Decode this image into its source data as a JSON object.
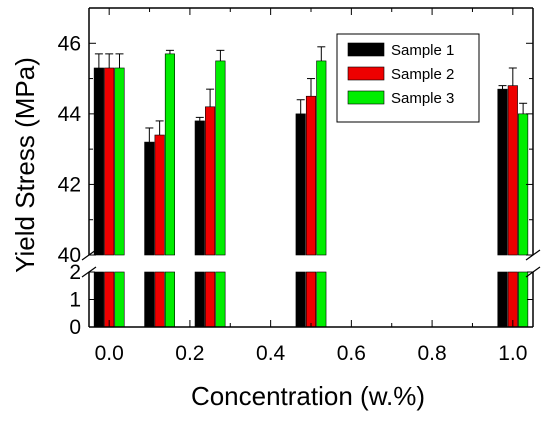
{
  "chart_data": {
    "type": "bar",
    "xlabel": "Concentration (w.%)",
    "ylabel": "Yield Stress (MPa)",
    "x_ticks": [
      "0.0",
      "0.2",
      "0.4",
      "0.6",
      "0.8",
      "1.0"
    ],
    "x_tick_values": [
      0.0,
      0.2,
      0.4,
      0.6,
      0.8,
      1.0
    ],
    "xlim": [
      -0.05,
      1.05
    ],
    "y_axis_break": {
      "lower_range": [
        0,
        2
      ],
      "upper_range": [
        40,
        47
      ]
    },
    "y_ticks_upper": [
      "40",
      "42",
      "44",
      "46"
    ],
    "y_ticks_lower": [
      "0",
      "1",
      "2"
    ],
    "y_tick_values_upper": [
      40,
      42,
      44,
      46
    ],
    "y_tick_values_lower": [
      0,
      1,
      2
    ],
    "concentrations": [
      0.0,
      0.125,
      0.25,
      0.5,
      1.0
    ],
    "series": [
      {
        "name": "Sample 1",
        "color": "#000000",
        "values": [
          45.3,
          43.2,
          43.8,
          44.0,
          44.7
        ],
        "errors": [
          0.4,
          0.4,
          0.1,
          0.4,
          0.1
        ]
      },
      {
        "name": "Sample 2",
        "color": "#ee0000",
        "values": [
          45.3,
          43.4,
          44.2,
          44.5,
          44.8
        ],
        "errors": [
          0.4,
          0.4,
          0.5,
          0.5,
          0.5
        ]
      },
      {
        "name": "Sample 3",
        "color": "#00ee00",
        "values": [
          45.3,
          45.7,
          45.5,
          45.5,
          44.0
        ],
        "errors": [
          0.4,
          0.1,
          0.3,
          0.4,
          0.3
        ]
      }
    ],
    "legend_position": "top-right",
    "grid": false
  }
}
